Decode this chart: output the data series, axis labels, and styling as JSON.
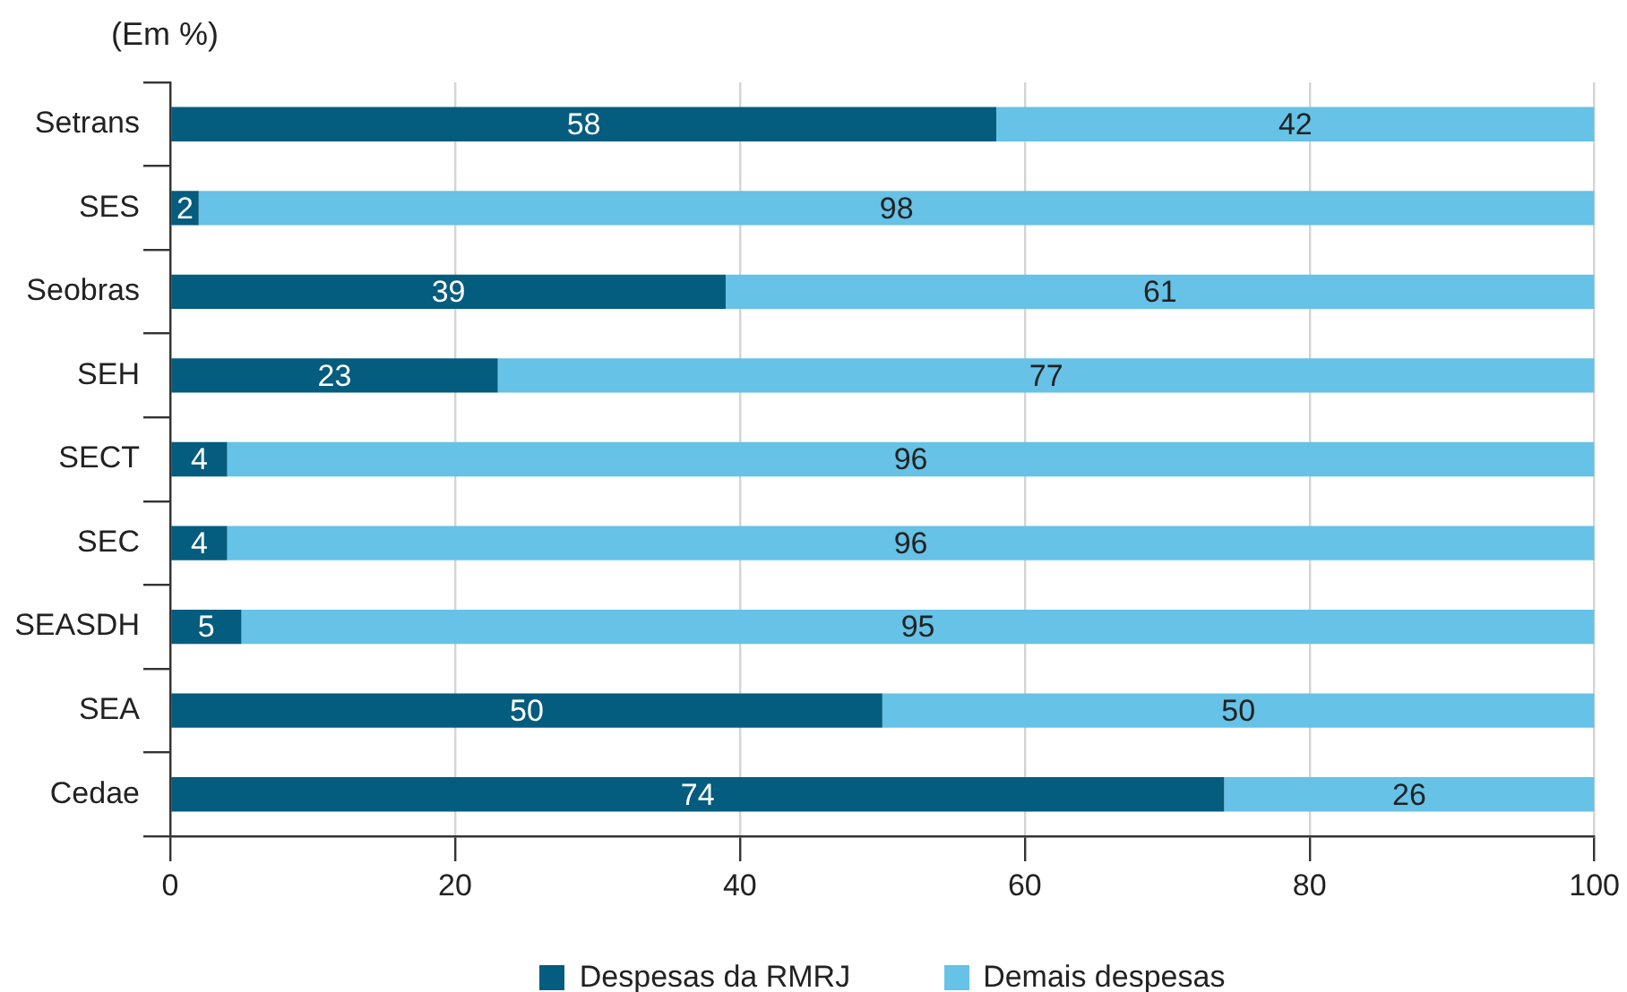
{
  "chart_data": {
    "type": "bar",
    "orientation": "horizontal",
    "stacked": true,
    "title": "(Em %)",
    "categories": [
      "Setrans",
      "SES",
      "Seobras",
      "SEH",
      "SECT",
      "SEC",
      "SEASDH",
      "SEA",
      "Cedae"
    ],
    "series": [
      {
        "name": "Despesas da RMRJ",
        "color": "#045c7e",
        "values": [
          58,
          2,
          39,
          23,
          4,
          4,
          5,
          50,
          74
        ]
      },
      {
        "name": "Demais despesas",
        "color": "#66c2e6",
        "values": [
          42,
          98,
          61,
          77,
          96,
          96,
          95,
          50,
          26
        ]
      }
    ],
    "xlim": [
      0,
      100
    ],
    "xticks": [
      0,
      20,
      40,
      60,
      80,
      100
    ],
    "grid": "x",
    "legend": "bottom",
    "data_labels": true
  }
}
